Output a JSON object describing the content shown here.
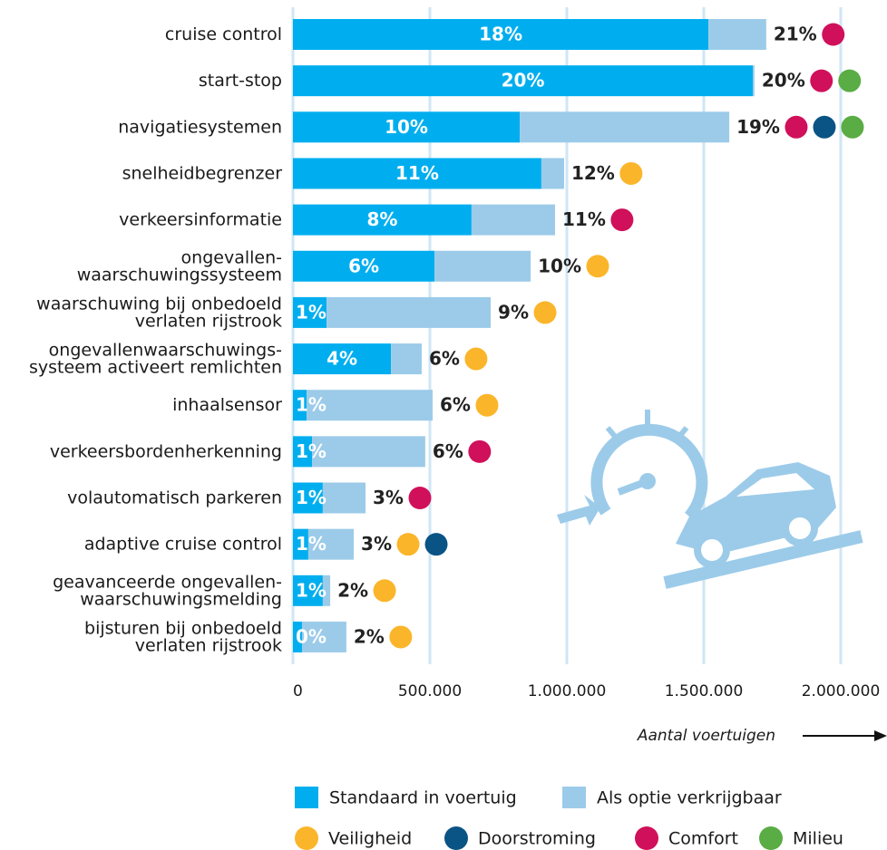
{
  "chart_data": {
    "type": "stacked_barh",
    "x_label": "Aantal voertuigen",
    "categories": [
      "cruise control",
      "start-stop",
      "navigatiesystemen",
      "snelheidbegrenzer",
      "verkeersinformatie",
      "ongevallen-\nwaarschuwingssysteem",
      "waarschuwing bij onbedoeld\nverlaten rijstrook",
      "ongevallenwaarschuwings-\nsysteem activeert remlichten",
      "inhaalsensor",
      "verkeersbordenherkenning",
      "volautomatisch parkeren",
      "adaptive cruise control",
      "geavanceerde ongevallen-\nwaarschuwingsmelding",
      "bijsturen bij onbedoeld\nverlaten rijstrook"
    ],
    "series": [
      {
        "name": "Standaard in voertuig",
        "color": "#00aeef",
        "values": [
          1517000,
          1679000,
          828000,
          907000,
          652000,
          517000,
          123000,
          358000,
          50000,
          70000,
          109000,
          56000,
          109000,
          33000
        ],
        "percent_labels": [
          "18%",
          "20%",
          "10%",
          "11%",
          "8%",
          "6%",
          "1%",
          "4%",
          "1%",
          "1%",
          "1%",
          "1%",
          "1%",
          "0%"
        ]
      },
      {
        "name": "Als optie verkrijgbaar",
        "color": "#9ccbe9",
        "values": [
          211000,
          6000,
          765000,
          83000,
          305000,
          351000,
          599000,
          112000,
          460000,
          413000,
          156000,
          166000,
          27000,
          162000
        ]
      }
    ],
    "total_percent_labels": [
      "21%",
      "20%",
      "19%",
      "12%",
      "11%",
      "10%",
      "9%",
      "6%",
      "6%",
      "6%",
      "3%",
      "3%",
      "2%",
      "2%"
    ],
    "themes": [
      {
        "name": "Veiligheid",
        "color": "#fbb52a"
      },
      {
        "name": "Doorstroming",
        "color": "#0a5485"
      },
      {
        "name": "Comfort",
        "color": "#d0105a"
      },
      {
        "name": "Milieu",
        "color": "#5aac44"
      }
    ],
    "category_themes": [
      [
        2
      ],
      [
        2,
        3
      ],
      [
        2,
        1,
        3
      ],
      [
        0
      ],
      [
        2
      ],
      [
        0
      ],
      [
        0
      ],
      [
        0
      ],
      [
        0
      ],
      [
        2
      ],
      [
        2
      ],
      [
        0,
        1
      ],
      [
        0
      ],
      [
        0
      ]
    ],
    "xlim": [
      0,
      2000000
    ],
    "xticks": [
      0,
      {
        "value": 500000,
        "label": "500.000"
      },
      {
        "value": 1000000,
        "label": "1.000.000"
      },
      {
        "value": 1500000,
        "label": "1.500.000"
      },
      {
        "value": 2000000,
        "label": "2.000.000"
      }
    ],
    "grid": true
  }
}
